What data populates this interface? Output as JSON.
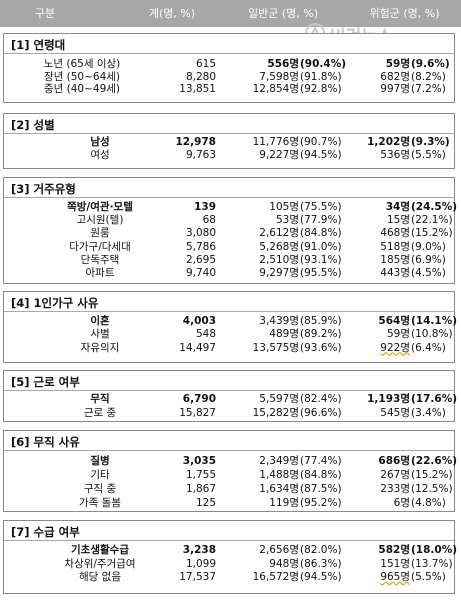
{
  "header": {
    "col_category": "구분",
    "col_total": "계(명, %)",
    "col_general": "일반군 (명, %)",
    "col_risk": "위험군 (명, %)"
  },
  "watermark": {
    "text": "비건뉴스",
    "color": "#c9c9c9"
  },
  "sections": [
    {
      "title": "[1] 연령대",
      "rows": [
        {
          "label": "노년 (65세 이상)",
          "total": "615",
          "general": "556명",
          "gp": "(90.4%)",
          "risk": "59명",
          "rp": "(9.6%)",
          "bold": false,
          "gen_bold": true
        },
        {
          "label": "장년 (50~64세)",
          "total": "8,280",
          "general": "7,598명",
          "gp": "(91.8%)",
          "risk": "682명",
          "rp": "(8.2%)"
        },
        {
          "label": "중년 (40~49세)",
          "total": "13,851",
          "general": "12,854명",
          "gp": "(92.8%)",
          "risk": "997명",
          "rp": "(7.2%)"
        }
      ]
    },
    {
      "title": "[2] 성별",
      "rows": [
        {
          "label": "남성",
          "total": "12,978",
          "general": "11,776명",
          "gp": "(90.7%)",
          "risk": "1,202명",
          "rp": "(9.3%)"
        },
        {
          "label": "여성",
          "total": "9,763",
          "general": "9,227명",
          "gp": "(94.5%)",
          "risk": "536명",
          "rp": "(5.5%)"
        }
      ]
    },
    {
      "title": "[3] 거주유형",
      "rows": [
        {
          "label": "쪽방/여관·모텔",
          "total": "139",
          "general": "105명",
          "gp": "(75.5%)",
          "risk": "34명",
          "rp": "(24.5%)"
        },
        {
          "label": "고시원(텔)",
          "total": "68",
          "general": "53명",
          "gp": "(77.9%)",
          "risk": "15명",
          "rp": "(22.1%)"
        },
        {
          "label": "원룸",
          "total": "3,080",
          "general": "2,612명",
          "gp": "(84.8%)",
          "risk": "468명",
          "rp": "(15.2%)"
        },
        {
          "label": "다가구/다세대",
          "total": "5,786",
          "general": "5,268명",
          "gp": "(91.0%)",
          "risk": "518명",
          "rp": "(9.0%)"
        },
        {
          "label": "단독주택",
          "total": "2,695",
          "general": "2,510명",
          "gp": "(93.1%)",
          "risk": "185명",
          "rp": "(6.9%)"
        },
        {
          "label": "아파트",
          "total": "9,740",
          "general": "9,297명",
          "gp": "(95.5%)",
          "risk": "443명",
          "rp": "(4.5%)"
        }
      ]
    },
    {
      "title": "[4] 1인가구 사유",
      "rows": [
        {
          "label": "이혼",
          "total": "4,003",
          "general": "3,439명",
          "gp": "(85.9%)",
          "risk": "564명",
          "rp": "(14.1%)"
        },
        {
          "label": "사별",
          "total": "548",
          "general": "489명",
          "gp": "(89.2%)",
          "risk": "59명",
          "rp": "(10.8%)"
        },
        {
          "label": "자유의지",
          "total": "14,497",
          "general": "13,575명",
          "gp": "(93.6%)",
          "risk": "922명",
          "rp": "(6.4%)"
        }
      ]
    },
    {
      "title": "[5] 근로 여부",
      "rows": [
        {
          "label": "무직",
          "total": "6,790",
          "general": "5,597명",
          "gp": "(82.4%)",
          "risk": "1,193명",
          "rp": "(17.6%)"
        },
        {
          "label": "근로 중",
          "total": "15,827",
          "general": "15,282명",
          "gp": "(96.6%)",
          "risk": "545명",
          "rp": "(3.4%)"
        }
      ]
    },
    {
      "title": "[6] 무직 사유",
      "rows": [
        {
          "label": "질병",
          "total": "3,035",
          "general": "2,349명",
          "gp": "(77.4%)",
          "risk": "686명",
          "rp": "(22.6%)"
        },
        {
          "label": "기타",
          "total": "1,755",
          "general": "1,488명",
          "gp": "(84.8%)",
          "risk": "267명",
          "rp": "(15.2%)"
        },
        {
          "label": "구직 중",
          "total": "1,867",
          "general": "1,634명",
          "gp": "(87.5%)",
          "risk": "233명",
          "rp": "(12.5%)"
        },
        {
          "label": "가족 돌봄",
          "total": "125",
          "general": "119명",
          "gp": "(95.2%)",
          "risk": "6명",
          "rp": "(4.8%)"
        }
      ]
    },
    {
      "title": "[7] 수급 여부",
      "rows": [
        {
          "label": "기초생활수급",
          "total": "3,238",
          "general": "2,656명",
          "gp": "(82.0%)",
          "risk": "582명",
          "rp": "(18.0%)"
        },
        {
          "label": "차상위/주거급여",
          "total": "1,099",
          "general": "948명",
          "gp": "(86.3%)",
          "risk": "151명",
          "rp": "(13.7%)"
        },
        {
          "label": "해당 없음",
          "total": "17,537",
          "general": "16,572명",
          "gp": "(94.5%)",
          "risk": "965명",
          "rp": "(5.5%)"
        }
      ]
    }
  ]
}
